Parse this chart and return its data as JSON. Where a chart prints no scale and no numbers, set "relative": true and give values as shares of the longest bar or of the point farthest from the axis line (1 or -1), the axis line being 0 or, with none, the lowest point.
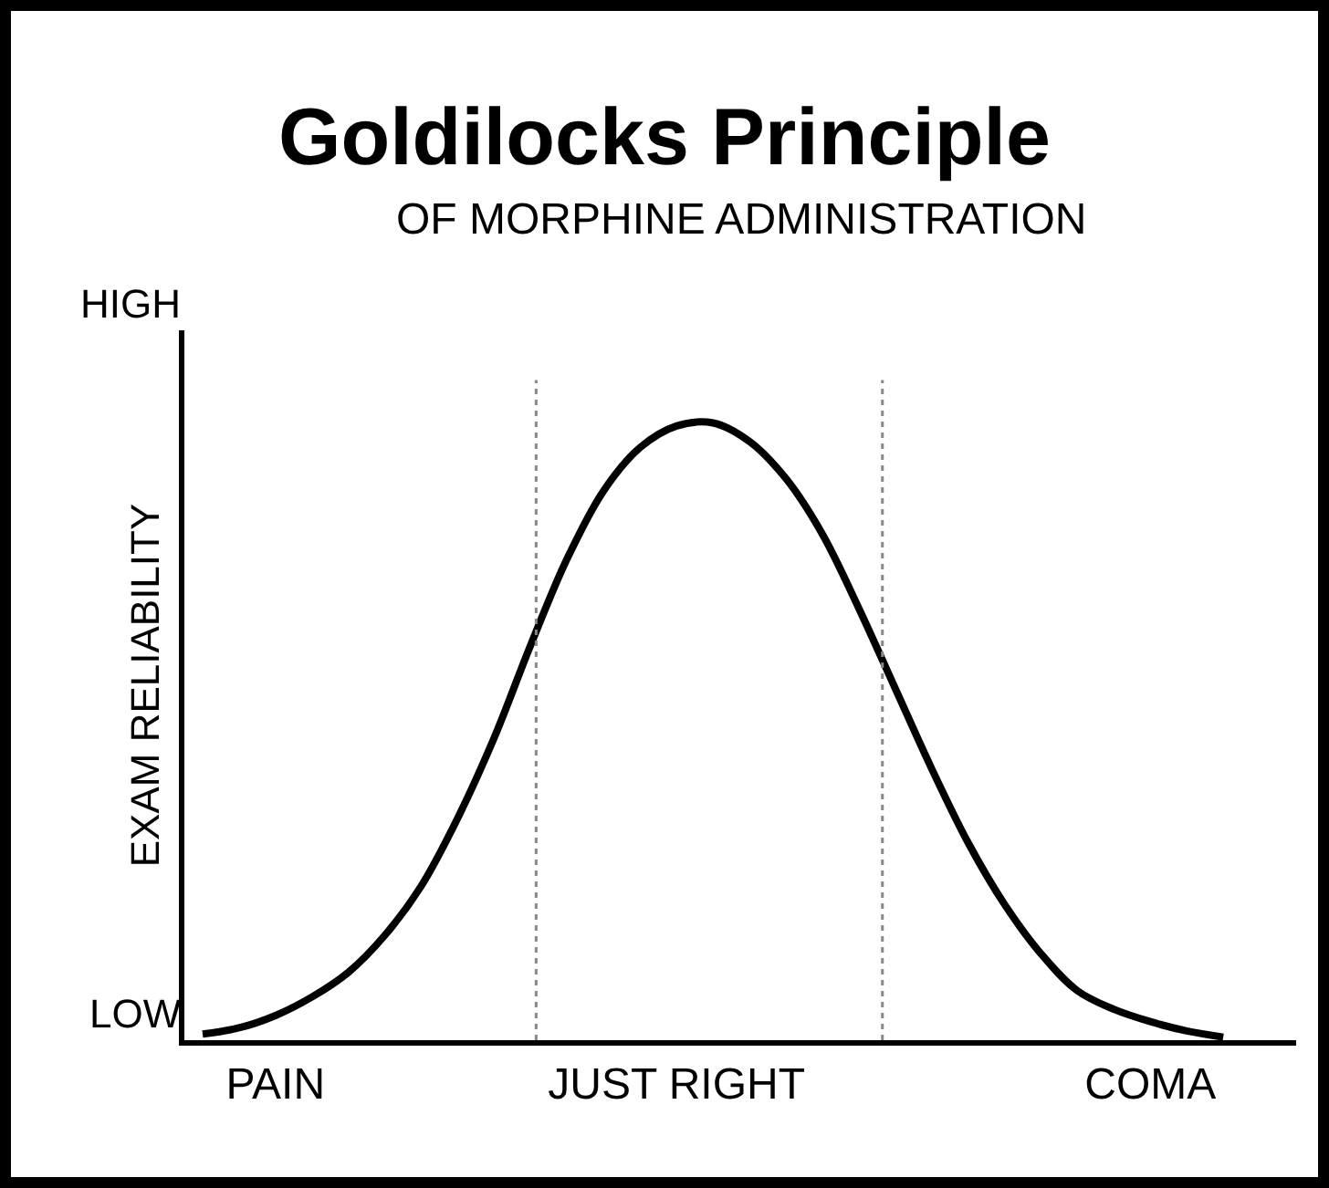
{
  "chart_data": {
    "type": "line",
    "title": "Goldilocks Principle",
    "subtitle": "OF MORPHINE ADMINISTRATION",
    "ylabel": "EXAM RELIABILITY",
    "annotations": [
      "HIGH",
      "LOW"
    ],
    "categories": [
      null,
      null,
      "PAIN",
      null,
      null,
      null,
      null,
      null,
      null,
      null,
      null,
      null,
      null,
      "JUST RIGHT",
      null,
      null,
      null,
      null,
      null,
      null,
      null,
      null,
      null,
      null,
      null,
      null,
      "COMA",
      null,
      null
    ],
    "series": [
      {
        "color": "#000000",
        "values": [
          0.01,
          0.02,
          0.04,
          0.07,
          0.11,
          0.17,
          0.25,
          0.36,
          0.49,
          0.64,
          0.78,
          0.89,
          0.96,
          0.995,
          1.0,
          0.97,
          0.91,
          0.82,
          0.7,
          0.57,
          0.44,
          0.32,
          0.22,
          0.14,
          0.08,
          0.05,
          0.03,
          0.015,
          0.005
        ]
      }
    ],
    "relative": true,
    "marker": "none",
    "line_style": "solid"
  }
}
